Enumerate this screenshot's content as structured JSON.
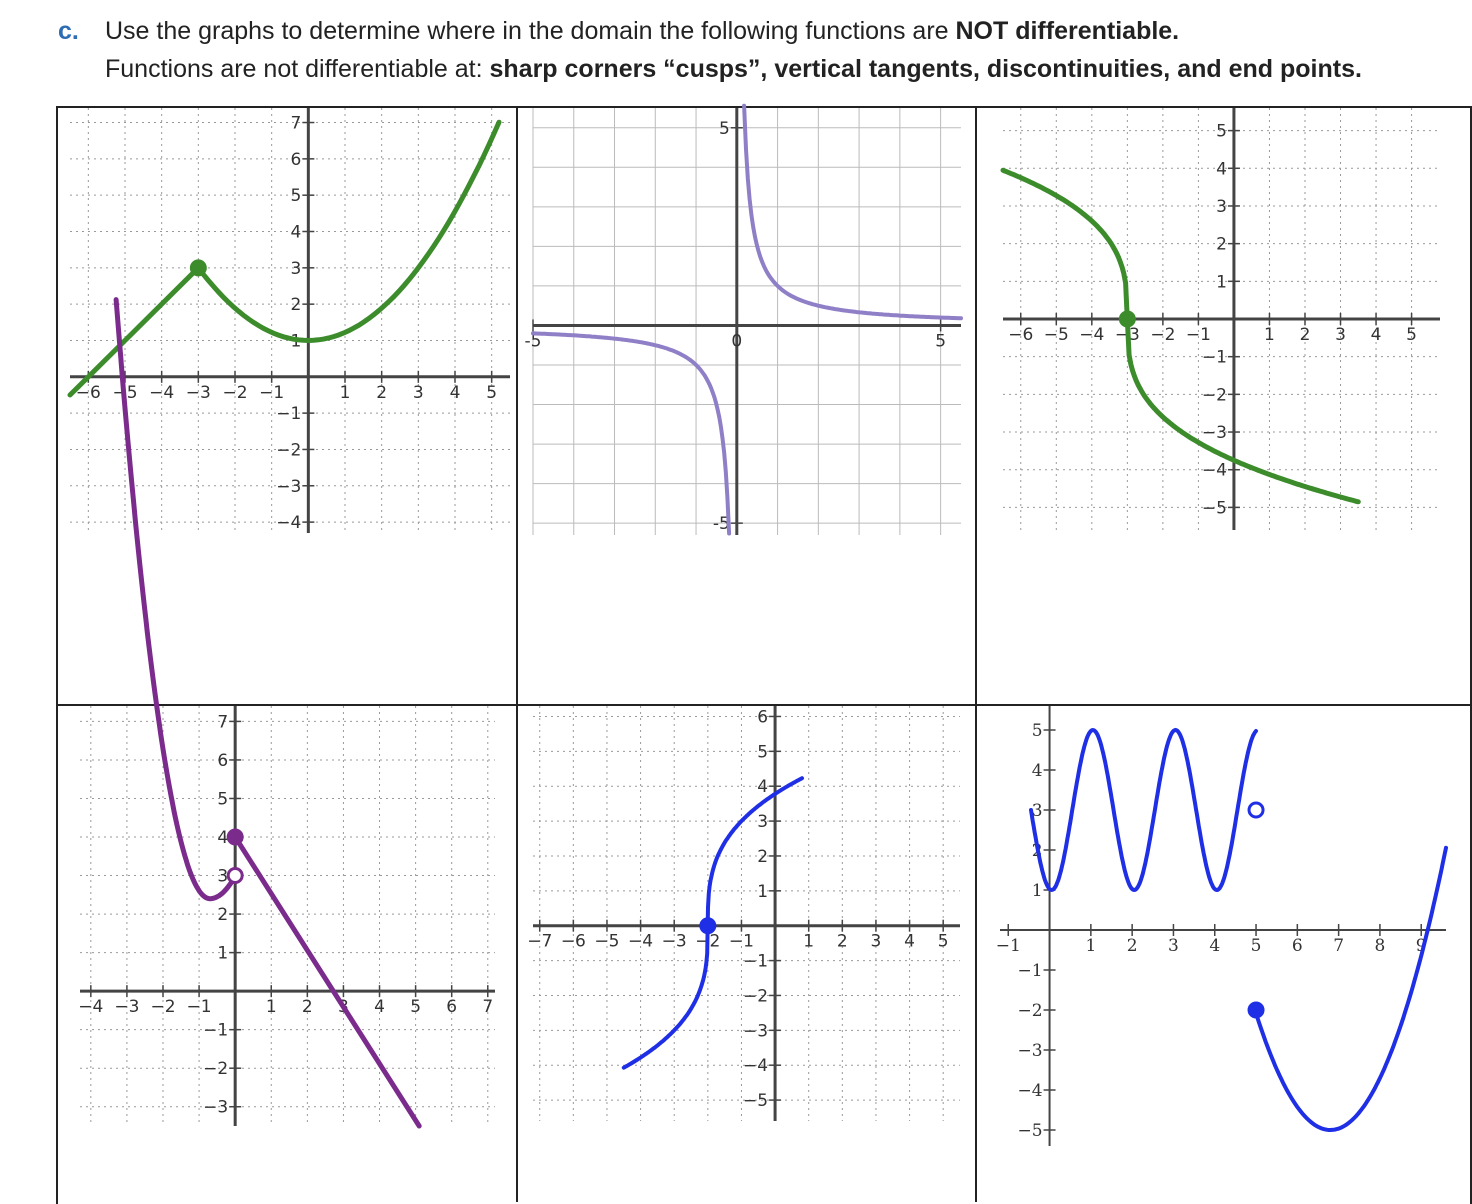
{
  "header": {
    "letter": "c.",
    "line1_plain": "Use the graphs to determine where in the domain the following functions are ",
    "line1_bold": "NOT differentiable.",
    "line2_plain": "Functions are not differentiable at: ",
    "line2_bold": "sharp corners “cusps”, vertical tangents, discontinuities, and end points."
  },
  "colors": {
    "green": "#3c8c2c",
    "purple": "#8f7fc7",
    "violet": "#7b2b8c",
    "blue": "#1f2fe6"
  },
  "chart_data": [
    {
      "type": "line",
      "name": "graph-1",
      "x_ticks": [
        "−6",
        "−5",
        "−4",
        "−3",
        "−2",
        "−1",
        "1",
        "2",
        "3",
        "4",
        "5"
      ],
      "y_ticks": [
        "7",
        "6",
        "5",
        "4",
        "3",
        "2",
        "1",
        "−1",
        "−2",
        "−3",
        "−4"
      ],
      "xlim": [
        -6.5,
        5.5
      ],
      "ylim": [
        -4.3,
        7.4
      ],
      "color": "#3c8c2c",
      "series": [
        {
          "x": [
            -6.5,
            -3
          ],
          "y": [
            -0.5,
            3
          ]
        },
        {
          "x": [
            -3,
            5.2
          ],
          "y": [
            3,
            7.6
          ]
        }
      ],
      "points": [
        {
          "x": -3,
          "y": 3,
          "filled": true
        }
      ]
    },
    {
      "type": "line",
      "name": "graph-2",
      "x_ticks": [
        "-5",
        "0",
        "5"
      ],
      "y_ticks": [
        "5",
        "-5"
      ],
      "xlim": [
        -5,
        5.5
      ],
      "ylim": [
        -5.3,
        5.5
      ],
      "color": "#8f7fc7"
    },
    {
      "type": "line",
      "name": "graph-3",
      "x_ticks": [
        "−6",
        "−5",
        "−4",
        "−3",
        "−2",
        "−1",
        "1",
        "2",
        "3",
        "4",
        "5"
      ],
      "y_ticks": [
        "5",
        "4",
        "3",
        "2",
        "1",
        "−1",
        "−2",
        "−3",
        "−4",
        "−5"
      ],
      "xlim": [
        -6.5,
        5.8
      ],
      "ylim": [
        -5.6,
        5.6
      ],
      "color": "#3c8c2c",
      "points": [
        {
          "x": -3,
          "y": 0,
          "filled": true
        }
      ]
    },
    {
      "type": "line",
      "name": "graph-4",
      "x_ticks": [
        "−4",
        "−3",
        "−2",
        "−1",
        "1",
        "2",
        "3",
        "4",
        "5",
        "6",
        "7"
      ],
      "y_ticks": [
        "7",
        "6",
        "5",
        "4",
        "3",
        "2",
        "1",
        "−1",
        "−2",
        "−3"
      ],
      "xlim": [
        -4.3,
        7.2
      ],
      "ylim": [
        -3.5,
        7.4
      ],
      "color": "#7b2b8c",
      "points": [
        {
          "x": 0,
          "y": 4,
          "filled": true
        },
        {
          "x": 0,
          "y": 3,
          "filled": false
        }
      ]
    },
    {
      "type": "line",
      "name": "graph-5",
      "x_ticks": [
        "−7",
        "−6",
        "−5",
        "−4",
        "−3",
        "−2",
        "−1",
        "1",
        "2",
        "3",
        "4",
        "5"
      ],
      "y_ticks": [
        "6",
        "5",
        "4",
        "3",
        "2",
        "1",
        "−1",
        "−2",
        "−3",
        "−4",
        "−5"
      ],
      "xlim": [
        -7.2,
        5.5
      ],
      "ylim": [
        -5.6,
        6.3
      ],
      "color": "#1f2fe6",
      "points": [
        {
          "x": -2,
          "y": 0,
          "filled": true
        }
      ]
    },
    {
      "type": "line",
      "name": "graph-6",
      "x_ticks": [
        "−1",
        "1",
        "2",
        "3",
        "4",
        "5",
        "6",
        "7",
        "8",
        "9"
      ],
      "y_ticks": [
        "5",
        "4",
        "3",
        "2",
        "1",
        "−1",
        "−2",
        "−3",
        "−4",
        "−5"
      ],
      "xlim": [
        -1.2,
        9.6
      ],
      "ylim": [
        -5.4,
        5.6
      ],
      "color": "#1f2fe6",
      "points": [
        {
          "x": 5,
          "y": 3,
          "filled": false
        },
        {
          "x": 5,
          "y": -2,
          "filled": true
        }
      ]
    }
  ]
}
